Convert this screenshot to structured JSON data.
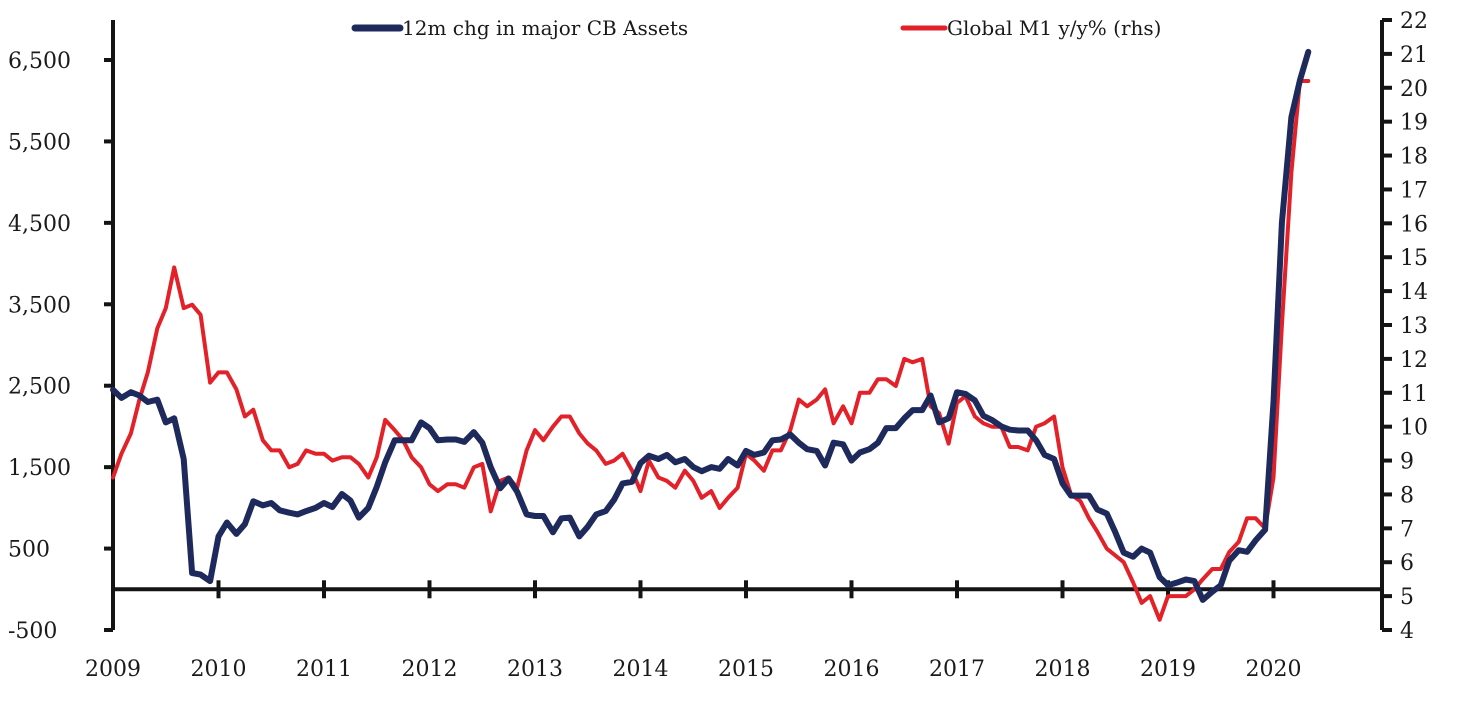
{
  "chart_data": {
    "type": "line",
    "title": "",
    "xlabel": "",
    "ylabel_left": "",
    "ylabel_right": "",
    "x_tick_labels": [
      "2009",
      "2010",
      "2011",
      "2012",
      "2013",
      "2014",
      "2015",
      "2016",
      "2017",
      "2018",
      "2019",
      "2020"
    ],
    "xlim": [
      2009.0,
      2020.75
    ],
    "ylim_left": [
      -500,
      7000
    ],
    "yticks_left": [
      -500,
      500,
      1500,
      2500,
      3500,
      4500,
      5500,
      6500
    ],
    "ytick_labels_left": [
      "-500",
      "500",
      "1,500",
      "2,500",
      "3,500",
      "4,500",
      "5,500",
      "6,500"
    ],
    "ylim_right": [
      4,
      22
    ],
    "yticks_right": [
      4,
      5,
      6,
      7,
      8,
      9,
      10,
      11,
      12,
      13,
      14,
      15,
      16,
      17,
      18,
      19,
      20,
      21,
      22
    ],
    "ytick_labels_right": [
      "4",
      "5",
      "6",
      "7",
      "8",
      "9",
      "10",
      "11",
      "12",
      "13",
      "14",
      "15",
      "16",
      "17",
      "18",
      "19",
      "20",
      "21",
      "22"
    ],
    "zero_line_left": 0,
    "grid": false,
    "legend_position": "top-center",
    "series": [
      {
        "name": "12m chg in major CB Assets",
        "axis": "left",
        "color": "#1f2a5c",
        "points": [
          [
            2009.0,
            2450
          ],
          [
            2009.08,
            2350
          ],
          [
            2009.17,
            2420
          ],
          [
            2009.25,
            2380
          ],
          [
            2009.33,
            2300
          ],
          [
            2009.42,
            2330
          ],
          [
            2009.5,
            2050
          ],
          [
            2009.58,
            2100
          ],
          [
            2009.67,
            1600
          ],
          [
            2009.75,
            200
          ],
          [
            2009.83,
            180
          ],
          [
            2009.92,
            100
          ],
          [
            2010.0,
            650
          ],
          [
            2010.08,
            820
          ],
          [
            2010.17,
            680
          ],
          [
            2010.25,
            800
          ],
          [
            2010.33,
            1080
          ],
          [
            2010.42,
            1030
          ],
          [
            2010.5,
            1060
          ],
          [
            2010.58,
            970
          ],
          [
            2010.67,
            940
          ],
          [
            2010.75,
            920
          ],
          [
            2010.83,
            960
          ],
          [
            2010.92,
            1000
          ],
          [
            2011.0,
            1060
          ],
          [
            2011.08,
            1010
          ],
          [
            2011.17,
            1170
          ],
          [
            2011.25,
            1090
          ],
          [
            2011.33,
            880
          ],
          [
            2011.42,
            1000
          ],
          [
            2011.5,
            1260
          ],
          [
            2011.58,
            1560
          ],
          [
            2011.67,
            1830
          ],
          [
            2011.75,
            1830
          ],
          [
            2011.83,
            1830
          ],
          [
            2011.92,
            2050
          ],
          [
            2012.0,
            1980
          ],
          [
            2012.08,
            1830
          ],
          [
            2012.17,
            1840
          ],
          [
            2012.25,
            1840
          ],
          [
            2012.33,
            1810
          ],
          [
            2012.42,
            1930
          ],
          [
            2012.5,
            1800
          ],
          [
            2012.58,
            1500
          ],
          [
            2012.67,
            1240
          ],
          [
            2012.75,
            1360
          ],
          [
            2012.83,
            1200
          ],
          [
            2012.92,
            920
          ],
          [
            2013.0,
            900
          ],
          [
            2013.08,
            900
          ],
          [
            2013.17,
            700
          ],
          [
            2013.25,
            870
          ],
          [
            2013.33,
            880
          ],
          [
            2013.42,
            650
          ],
          [
            2013.5,
            770
          ],
          [
            2013.58,
            920
          ],
          [
            2013.67,
            960
          ],
          [
            2013.75,
            1100
          ],
          [
            2013.83,
            1300
          ],
          [
            2013.92,
            1320
          ],
          [
            2014.0,
            1550
          ],
          [
            2014.08,
            1640
          ],
          [
            2014.17,
            1600
          ],
          [
            2014.25,
            1650
          ],
          [
            2014.33,
            1560
          ],
          [
            2014.42,
            1600
          ],
          [
            2014.5,
            1500
          ],
          [
            2014.58,
            1450
          ],
          [
            2014.67,
            1500
          ],
          [
            2014.75,
            1480
          ],
          [
            2014.83,
            1600
          ],
          [
            2014.92,
            1520
          ],
          [
            2015.0,
            1700
          ],
          [
            2015.08,
            1650
          ],
          [
            2015.17,
            1680
          ],
          [
            2015.25,
            1830
          ],
          [
            2015.33,
            1840
          ],
          [
            2015.42,
            1900
          ],
          [
            2015.5,
            1800
          ],
          [
            2015.58,
            1720
          ],
          [
            2015.67,
            1700
          ],
          [
            2015.75,
            1520
          ],
          [
            2015.83,
            1800
          ],
          [
            2015.92,
            1780
          ],
          [
            2016.0,
            1580
          ],
          [
            2016.08,
            1680
          ],
          [
            2016.17,
            1720
          ],
          [
            2016.25,
            1800
          ],
          [
            2016.33,
            1980
          ],
          [
            2016.42,
            1980
          ],
          [
            2016.5,
            2100
          ],
          [
            2016.58,
            2200
          ],
          [
            2016.67,
            2200
          ],
          [
            2016.75,
            2380
          ],
          [
            2016.83,
            2050
          ],
          [
            2016.92,
            2100
          ],
          [
            2017.0,
            2420
          ],
          [
            2017.08,
            2400
          ],
          [
            2017.17,
            2320
          ],
          [
            2017.25,
            2130
          ],
          [
            2017.33,
            2080
          ],
          [
            2017.42,
            2000
          ],
          [
            2017.5,
            1960
          ],
          [
            2017.58,
            1950
          ],
          [
            2017.67,
            1950
          ],
          [
            2017.75,
            1830
          ],
          [
            2017.83,
            1650
          ],
          [
            2017.92,
            1600
          ],
          [
            2018.0,
            1300
          ],
          [
            2018.08,
            1150
          ],
          [
            2018.17,
            1150
          ],
          [
            2018.25,
            1150
          ],
          [
            2018.33,
            980
          ],
          [
            2018.42,
            930
          ],
          [
            2018.5,
            700
          ],
          [
            2018.58,
            450
          ],
          [
            2018.67,
            400
          ],
          [
            2018.75,
            500
          ],
          [
            2018.83,
            450
          ],
          [
            2018.92,
            150
          ],
          [
            2019.0,
            50
          ],
          [
            2019.08,
            80
          ],
          [
            2019.17,
            120
          ],
          [
            2019.25,
            100
          ],
          [
            2019.33,
            -130
          ],
          [
            2019.42,
            -30
          ],
          [
            2019.5,
            50
          ],
          [
            2019.58,
            350
          ],
          [
            2019.67,
            480
          ],
          [
            2019.75,
            460
          ],
          [
            2019.83,
            600
          ],
          [
            2019.92,
            730
          ],
          [
            2020.0,
            2300
          ],
          [
            2020.08,
            4500
          ],
          [
            2020.17,
            5800
          ],
          [
            2020.25,
            6250
          ],
          [
            2020.33,
            6600
          ]
        ]
      },
      {
        "name": "Global M1 y/y% (rhs)",
        "axis": "right",
        "color": "#e32129",
        "points": [
          [
            2009.0,
            8.5
          ],
          [
            2009.08,
            9.2
          ],
          [
            2009.17,
            9.8
          ],
          [
            2009.25,
            10.8
          ],
          [
            2009.33,
            11.6
          ],
          [
            2009.42,
            12.9
          ],
          [
            2009.5,
            13.5
          ],
          [
            2009.58,
            14.7
          ],
          [
            2009.67,
            13.5
          ],
          [
            2009.75,
            13.6
          ],
          [
            2009.83,
            13.3
          ],
          [
            2009.92,
            11.3
          ],
          [
            2010.0,
            11.6
          ],
          [
            2010.08,
            11.6
          ],
          [
            2010.17,
            11.1
          ],
          [
            2010.25,
            10.3
          ],
          [
            2010.33,
            10.5
          ],
          [
            2010.42,
            9.6
          ],
          [
            2010.5,
            9.3
          ],
          [
            2010.58,
            9.3
          ],
          [
            2010.67,
            8.8
          ],
          [
            2010.75,
            8.9
          ],
          [
            2010.83,
            9.3
          ],
          [
            2010.92,
            9.2
          ],
          [
            2011.0,
            9.2
          ],
          [
            2011.08,
            9.0
          ],
          [
            2011.17,
            9.1
          ],
          [
            2011.25,
            9.1
          ],
          [
            2011.33,
            8.9
          ],
          [
            2011.42,
            8.5
          ],
          [
            2011.5,
            9.1
          ],
          [
            2011.58,
            10.2
          ],
          [
            2011.67,
            9.9
          ],
          [
            2011.75,
            9.6
          ],
          [
            2011.83,
            9.1
          ],
          [
            2011.92,
            8.8
          ],
          [
            2012.0,
            8.3
          ],
          [
            2012.08,
            8.1
          ],
          [
            2012.17,
            8.3
          ],
          [
            2012.25,
            8.3
          ],
          [
            2012.33,
            8.2
          ],
          [
            2012.42,
            8.8
          ],
          [
            2012.5,
            8.9
          ],
          [
            2012.58,
            7.5
          ],
          [
            2012.67,
            8.4
          ],
          [
            2012.75,
            8.5
          ],
          [
            2012.83,
            8.2
          ],
          [
            2012.92,
            9.3
          ],
          [
            2013.0,
            9.9
          ],
          [
            2013.08,
            9.6
          ],
          [
            2013.17,
            10.0
          ],
          [
            2013.25,
            10.3
          ],
          [
            2013.33,
            10.3
          ],
          [
            2013.42,
            9.8
          ],
          [
            2013.5,
            9.5
          ],
          [
            2013.58,
            9.3
          ],
          [
            2013.67,
            8.9
          ],
          [
            2013.75,
            9.0
          ],
          [
            2013.83,
            9.2
          ],
          [
            2013.92,
            8.7
          ],
          [
            2014.0,
            8.1
          ],
          [
            2014.08,
            9.0
          ],
          [
            2014.17,
            8.5
          ],
          [
            2014.25,
            8.4
          ],
          [
            2014.33,
            8.2
          ],
          [
            2014.42,
            8.7
          ],
          [
            2014.5,
            8.4
          ],
          [
            2014.58,
            7.9
          ],
          [
            2014.67,
            8.1
          ],
          [
            2014.75,
            7.6
          ],
          [
            2014.83,
            7.9
          ],
          [
            2014.92,
            8.2
          ],
          [
            2015.0,
            9.2
          ],
          [
            2015.08,
            9.0
          ],
          [
            2015.17,
            8.7
          ],
          [
            2015.25,
            9.3
          ],
          [
            2015.33,
            9.3
          ],
          [
            2015.42,
            9.9
          ],
          [
            2015.5,
            10.8
          ],
          [
            2015.58,
            10.6
          ],
          [
            2015.67,
            10.8
          ],
          [
            2015.75,
            11.1
          ],
          [
            2015.83,
            10.1
          ],
          [
            2015.92,
            10.6
          ],
          [
            2016.0,
            10.1
          ],
          [
            2016.08,
            11.0
          ],
          [
            2016.17,
            11.0
          ],
          [
            2016.25,
            11.4
          ],
          [
            2016.33,
            11.4
          ],
          [
            2016.42,
            11.2
          ],
          [
            2016.5,
            12.0
          ],
          [
            2016.58,
            11.9
          ],
          [
            2016.67,
            12.0
          ],
          [
            2016.75,
            10.6
          ],
          [
            2016.83,
            10.4
          ],
          [
            2016.92,
            9.5
          ],
          [
            2017.0,
            10.7
          ],
          [
            2017.08,
            10.9
          ],
          [
            2017.17,
            10.3
          ],
          [
            2017.25,
            10.1
          ],
          [
            2017.33,
            10.0
          ],
          [
            2017.42,
            10.0
          ],
          [
            2017.5,
            9.4
          ],
          [
            2017.58,
            9.4
          ],
          [
            2017.67,
            9.3
          ],
          [
            2017.75,
            10.0
          ],
          [
            2017.83,
            10.1
          ],
          [
            2017.92,
            10.3
          ],
          [
            2018.0,
            8.8
          ],
          [
            2018.08,
            8.0
          ],
          [
            2018.17,
            7.8
          ],
          [
            2018.25,
            7.3
          ],
          [
            2018.33,
            6.9
          ],
          [
            2018.42,
            6.4
          ],
          [
            2018.5,
            6.2
          ],
          [
            2018.58,
            6.0
          ],
          [
            2018.67,
            5.4
          ],
          [
            2018.75,
            4.8
          ],
          [
            2018.83,
            5.0
          ],
          [
            2018.92,
            4.3
          ],
          [
            2019.0,
            5.0
          ],
          [
            2019.08,
            5.0
          ],
          [
            2019.17,
            5.0
          ],
          [
            2019.25,
            5.2
          ],
          [
            2019.33,
            5.5
          ],
          [
            2019.42,
            5.8
          ],
          [
            2019.5,
            5.8
          ],
          [
            2019.58,
            6.3
          ],
          [
            2019.67,
            6.6
          ],
          [
            2019.75,
            7.3
          ],
          [
            2019.83,
            7.3
          ],
          [
            2019.92,
            7.0
          ],
          [
            2020.0,
            8.5
          ],
          [
            2020.08,
            13.0
          ],
          [
            2020.17,
            17.5
          ],
          [
            2020.25,
            20.2
          ],
          [
            2020.33,
            20.2
          ]
        ]
      }
    ]
  }
}
